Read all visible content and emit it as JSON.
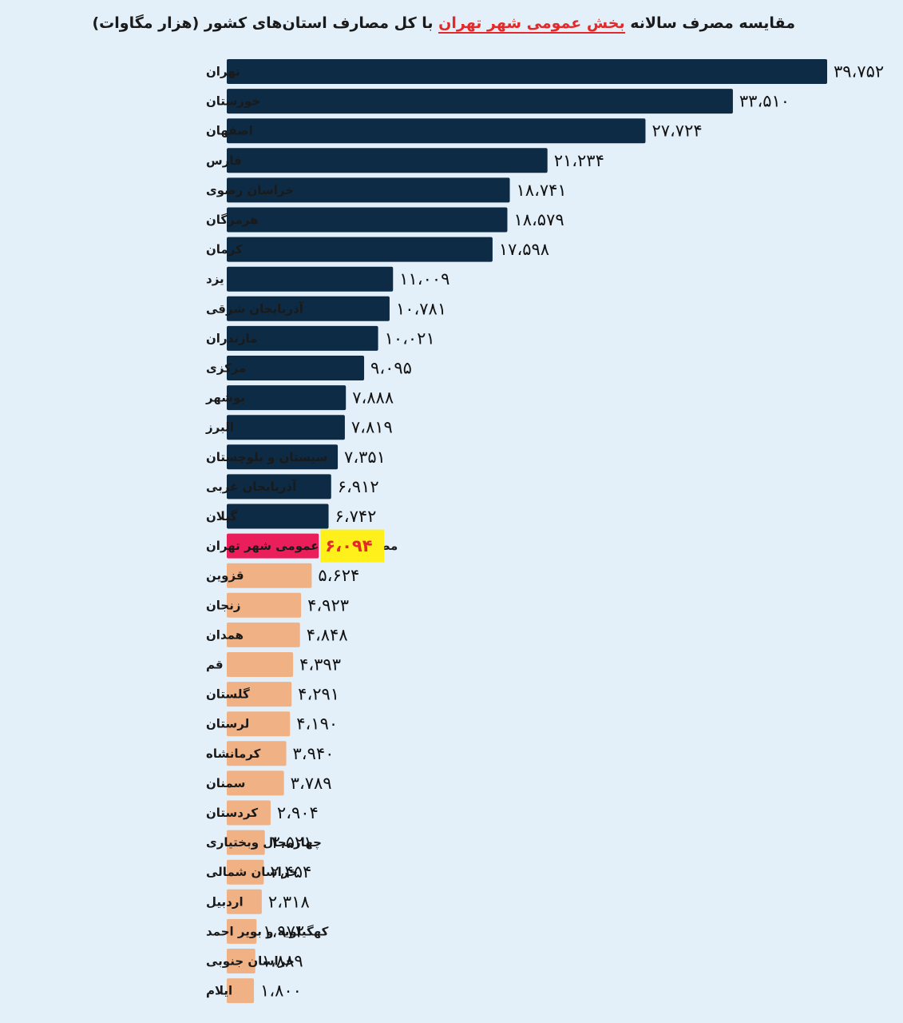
{
  "title": {
    "part1": "مقایسه مصرف سالانه ",
    "highlight": "بخش عمومی شهر تهران",
    "part2": " با کل مصارف استان‌های کشور (هزار مگاوات)"
  },
  "colors": {
    "background": "#e4f0f9",
    "above": "#0d2b45",
    "highlight": "#e91e5a",
    "below": "#f0b185",
    "highlight_label_bg": "#ffef1a",
    "highlight_text": "#e32a2a"
  },
  "chart_data": {
    "type": "bar",
    "orientation": "horizontal",
    "title": "مقایسه مصرف سالانه بخش عمومی شهر تهران با کل مصارف استان‌های کشور (هزار مگاوات)",
    "xlim": [
      0,
      39752
    ],
    "grid": false,
    "legend": "none",
    "categories": [
      "تهران",
      "خوزستان",
      "اصفهان",
      "فارس",
      "خراسان رضوی",
      "هرمزگان",
      "کرمان",
      "یزد",
      "آذربایجان  شرقی",
      "مازندران",
      "مرکزی",
      "بوشهر",
      "البرز",
      "سیستان و بلوچستان",
      "آذربایجان غربی",
      "گیلان",
      "مصرف بخش عمومی شهر تهران",
      "قزوین",
      "زنجان",
      "همدان",
      "قم",
      "گلستان",
      "لرستان",
      "کرمانشاه",
      "سمنان",
      "کردستان",
      "چهارمحال وبختیاری",
      "خراسان شمالی",
      "اردبیل",
      "کهگیلویه و بویر احمد",
      "خراسان جنوبی",
      "ایلام"
    ],
    "values": [
      39752,
      33510,
      27724,
      21234,
      18741,
      18579,
      17598,
      11009,
      10781,
      10021,
      9095,
      7888,
      7819,
      7351,
      6912,
      6742,
      6094,
      5624,
      4923,
      4848,
      4393,
      4291,
      4190,
      3940,
      3789,
      2904,
      2521,
      2454,
      2318,
      1972,
      1889,
      1800
    ],
    "value_labels": [
      "۳۹،۷۵۲",
      "۳۳،۵۱۰",
      "۲۷،۷۲۴",
      "۲۱،۲۳۴",
      "۱۸،۷۴۱",
      "۱۸،۵۷۹",
      "۱۷،۵۹۸",
      "۱۱،۰۰۹",
      "۱۰،۷۸۱",
      "۱۰،۰۲۱",
      "۹،۰۹۵",
      "۷،۸۸۸",
      "۷،۸۱۹",
      "۷،۳۵۱",
      "۶،۹۱۲",
      "۶،۷۴۲",
      "۶،۰۹۴",
      "۵،۶۲۴",
      "۴،۹۲۳",
      "۴،۸۴۸",
      "۴،۳۹۳",
      "۴،۲۹۱",
      "۴،۱۹۰",
      "۳،۹۴۰",
      "۳،۷۸۹",
      "۲،۹۰۴",
      "۲،۵۲۱",
      "۲،۴۵۴",
      "۲،۳۱۸",
      "۱،۹۷۲",
      "۱،۸۸۹",
      "۱،۸۰۰"
    ],
    "highlight_category": "مصرف بخش عمومی شهر تهران"
  }
}
